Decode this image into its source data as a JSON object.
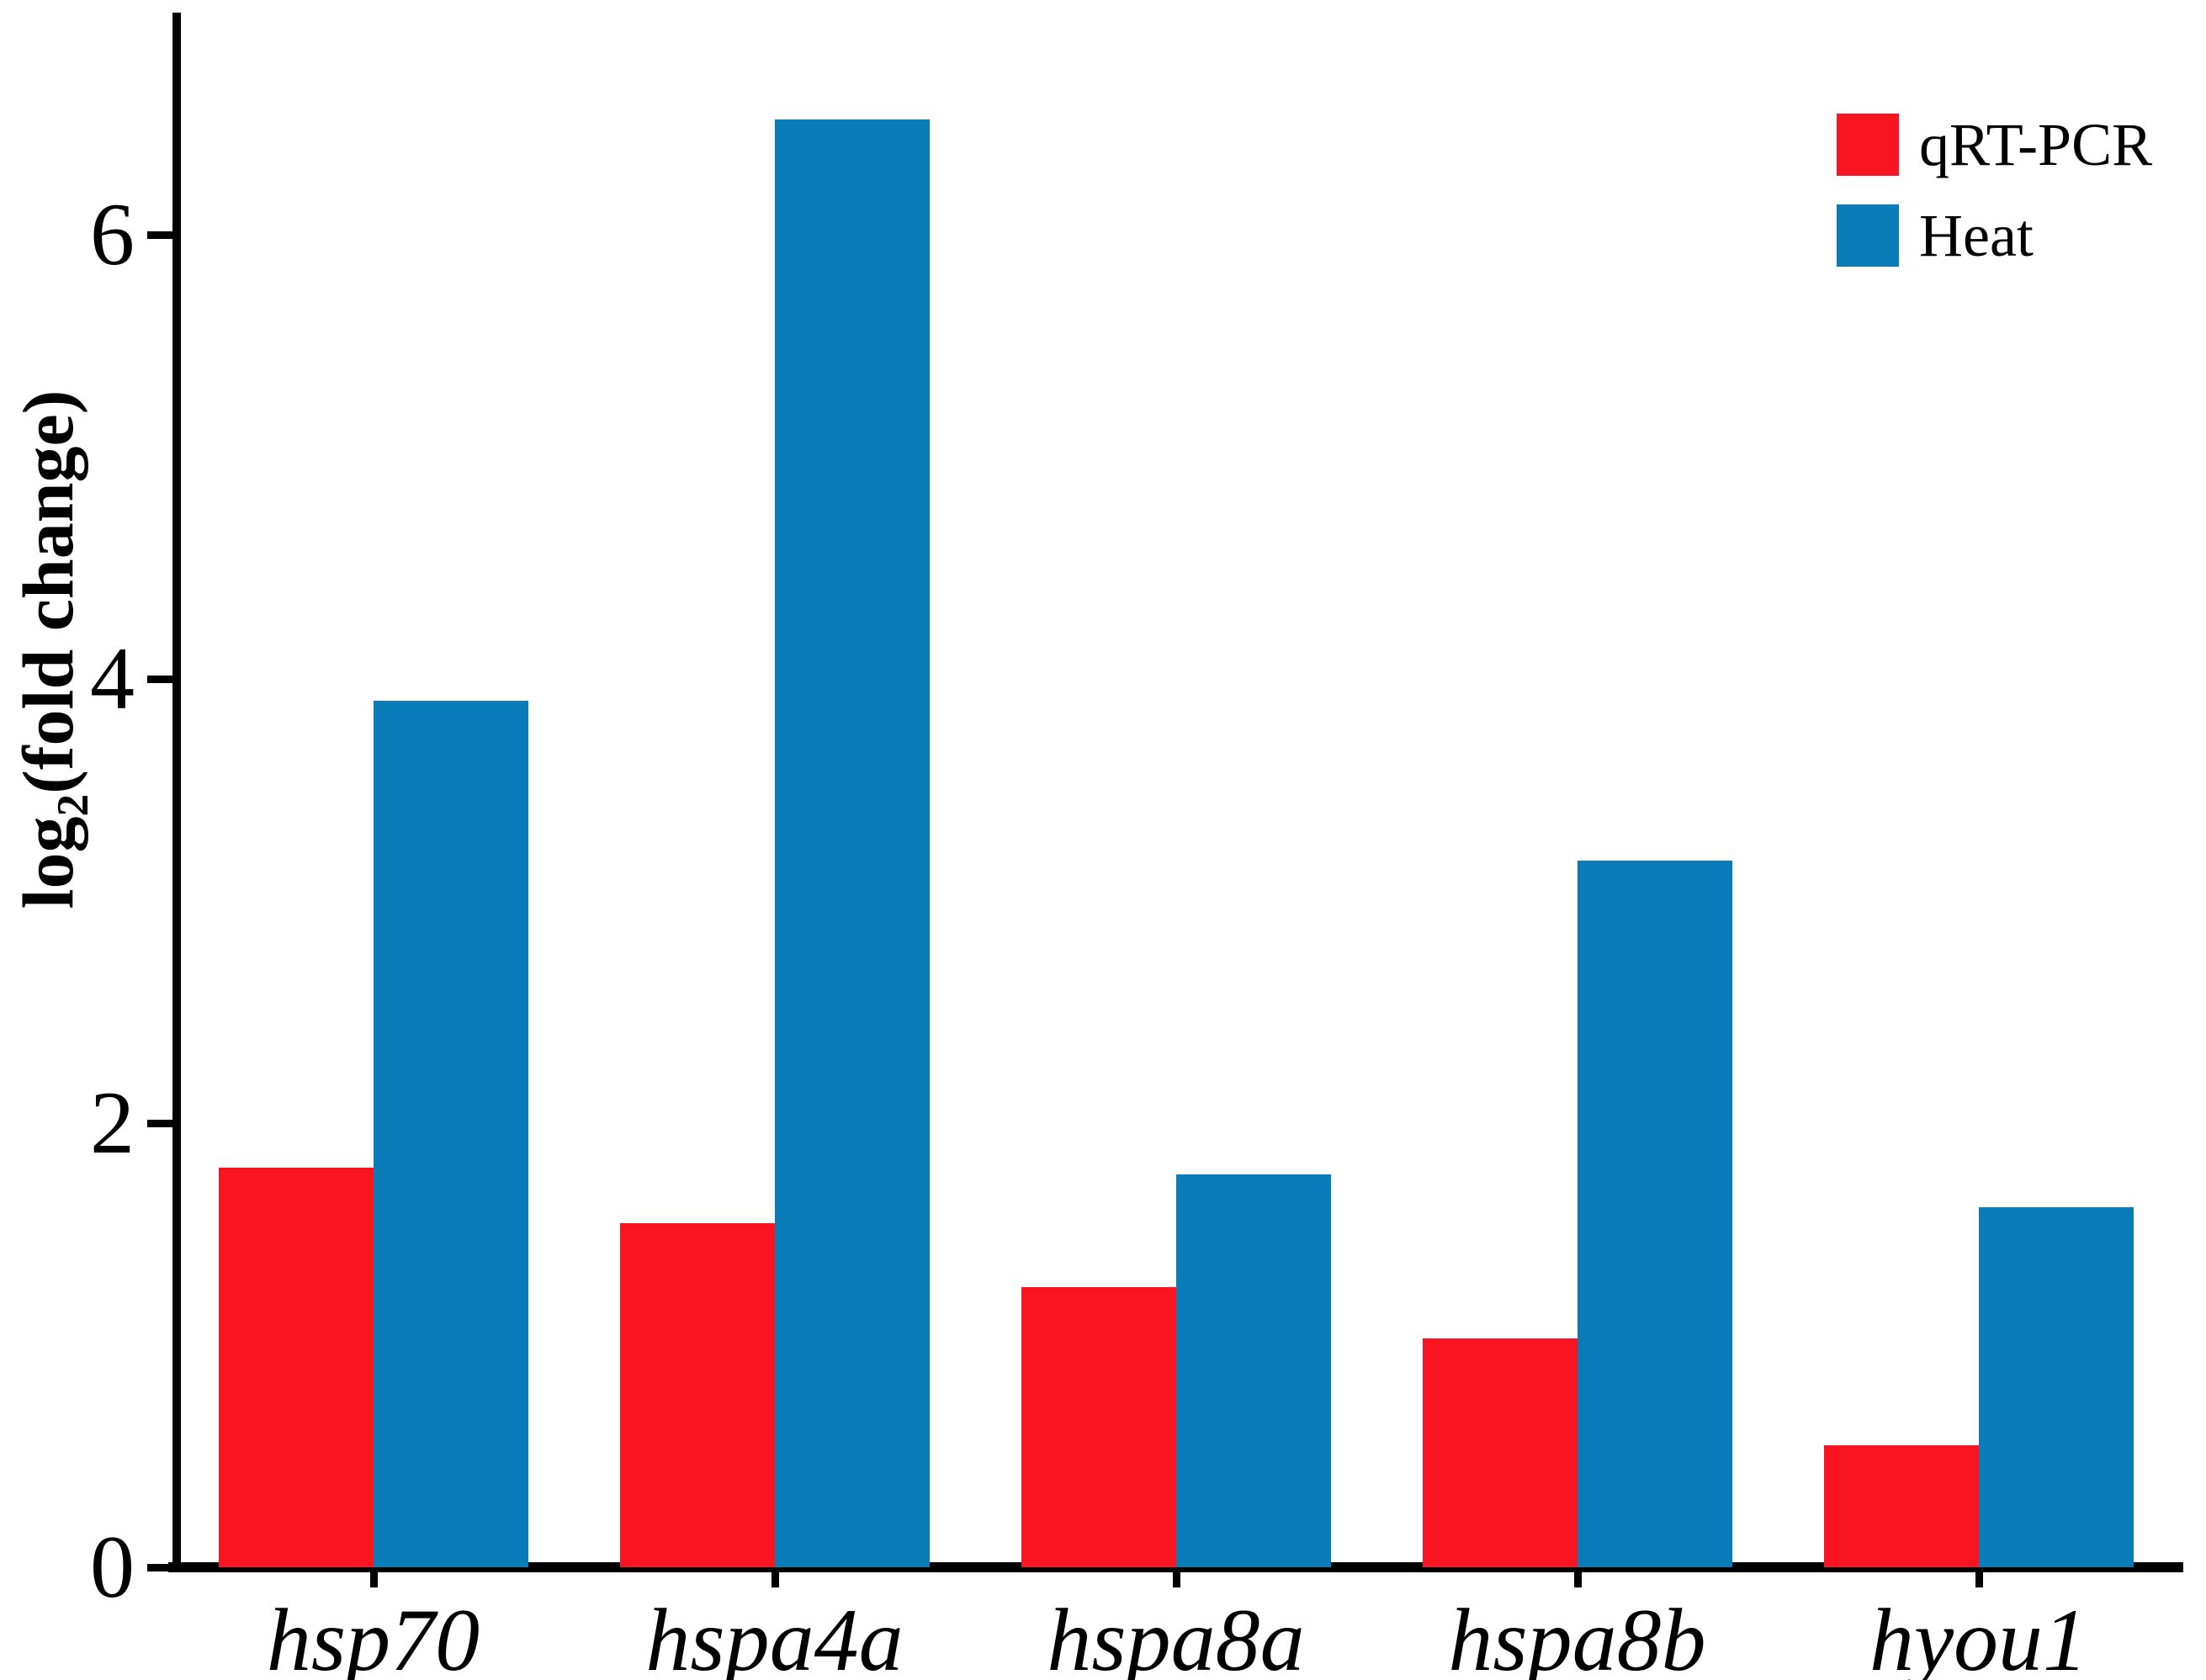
{
  "figure": {
    "background": "#ffffff",
    "axis_color": "#000000"
  },
  "chart_data": {
    "type": "bar",
    "title": "",
    "categories": [
      "hsp70",
      "hspa4a",
      "hspa8a",
      "hspa8b",
      "hyou1"
    ],
    "series": [
      {
        "name": "qRT-PCR",
        "color": "#f81420",
        "values": [
          1.8,
          1.55,
          1.26,
          1.03,
          0.55
        ]
      },
      {
        "name": "Heat",
        "color": "#0a7cb8",
        "values": [
          3.9,
          6.52,
          1.77,
          3.18,
          1.62
        ]
      }
    ],
    "xlabel": "",
    "ylabel": "log2(fold change)",
    "ylabel_parts": {
      "prefix": "log",
      "subscript": "2",
      "suffix": "(fold change)"
    },
    "ylim": [
      0,
      7
    ],
    "yticks": [
      0,
      2,
      4,
      6
    ],
    "grid": false,
    "legend_position": "top-right",
    "bar_grouping": "adjacent-pairs",
    "category_label_style": "italic"
  }
}
